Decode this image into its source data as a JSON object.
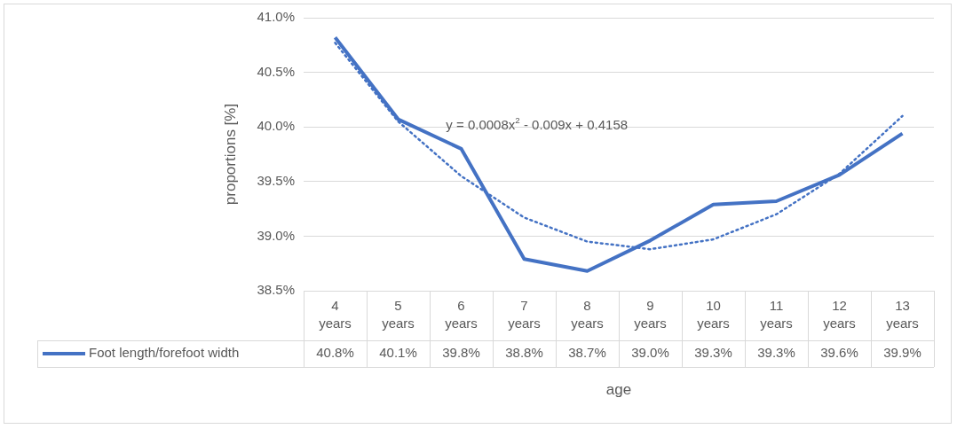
{
  "chart_data": {
    "type": "line",
    "xlabel": "age",
    "ylabel": "proportions [%]",
    "categories": [
      "4 years",
      "5 years",
      "6 years",
      "7 years",
      "8 years",
      "9 years",
      "10 years",
      "11 years",
      "12 years",
      "13 years"
    ],
    "series": [
      {
        "name": "Foot length/forefoot width",
        "color": "#4472c4",
        "values": [
          40.82,
          40.07,
          39.8,
          38.79,
          38.68,
          38.96,
          39.29,
          39.32,
          39.56,
          39.94
        ],
        "value_labels": [
          "40.8%",
          "40.1%",
          "39.8%",
          "38.8%",
          "38.7%",
          "39.0%",
          "39.3%",
          "39.3%",
          "39.6%",
          "39.9%"
        ]
      },
      {
        "type": "line",
        "line_style": "dotted",
        "color": "#4472c4",
        "values": [
          40.77,
          40.05,
          39.55,
          39.17,
          38.95,
          38.88,
          38.97,
          39.2,
          39.57,
          40.1
        ]
      }
    ],
    "ylim": [
      38.5,
      41
    ],
    "yticks": [
      {
        "value": 38.5,
        "label": "38.5%"
      },
      {
        "value": 39,
        "label": "39.0%"
      },
      {
        "value": 39.5,
        "label": "39.5%"
      },
      {
        "value": 40,
        "label": "40.0%"
      },
      {
        "value": 40.5,
        "label": "40.5%"
      },
      {
        "value": 41,
        "label": "41.0%"
      }
    ],
    "grid": "y",
    "legend": "bottom",
    "marker": "none",
    "line_style": "solid",
    "annotations": [
      "y = 0.0008x$^{2}$ - 0.009x + 0.4158"
    ]
  }
}
